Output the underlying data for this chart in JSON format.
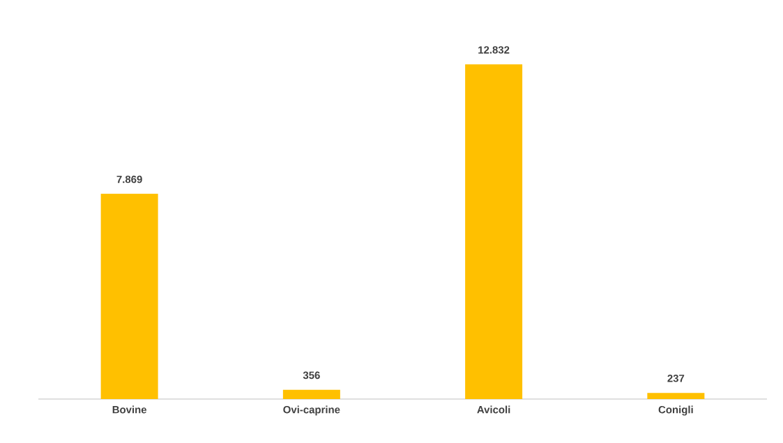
{
  "chart_data": {
    "type": "bar",
    "categories": [
      "Bovine",
      "Ovi-caprine",
      "Avicoli",
      "Conigli"
    ],
    "values": [
      7869,
      356,
      12832,
      237
    ],
    "value_labels": [
      "7.869",
      "356",
      "12.832",
      "237"
    ],
    "color": "#ffc000"
  }
}
